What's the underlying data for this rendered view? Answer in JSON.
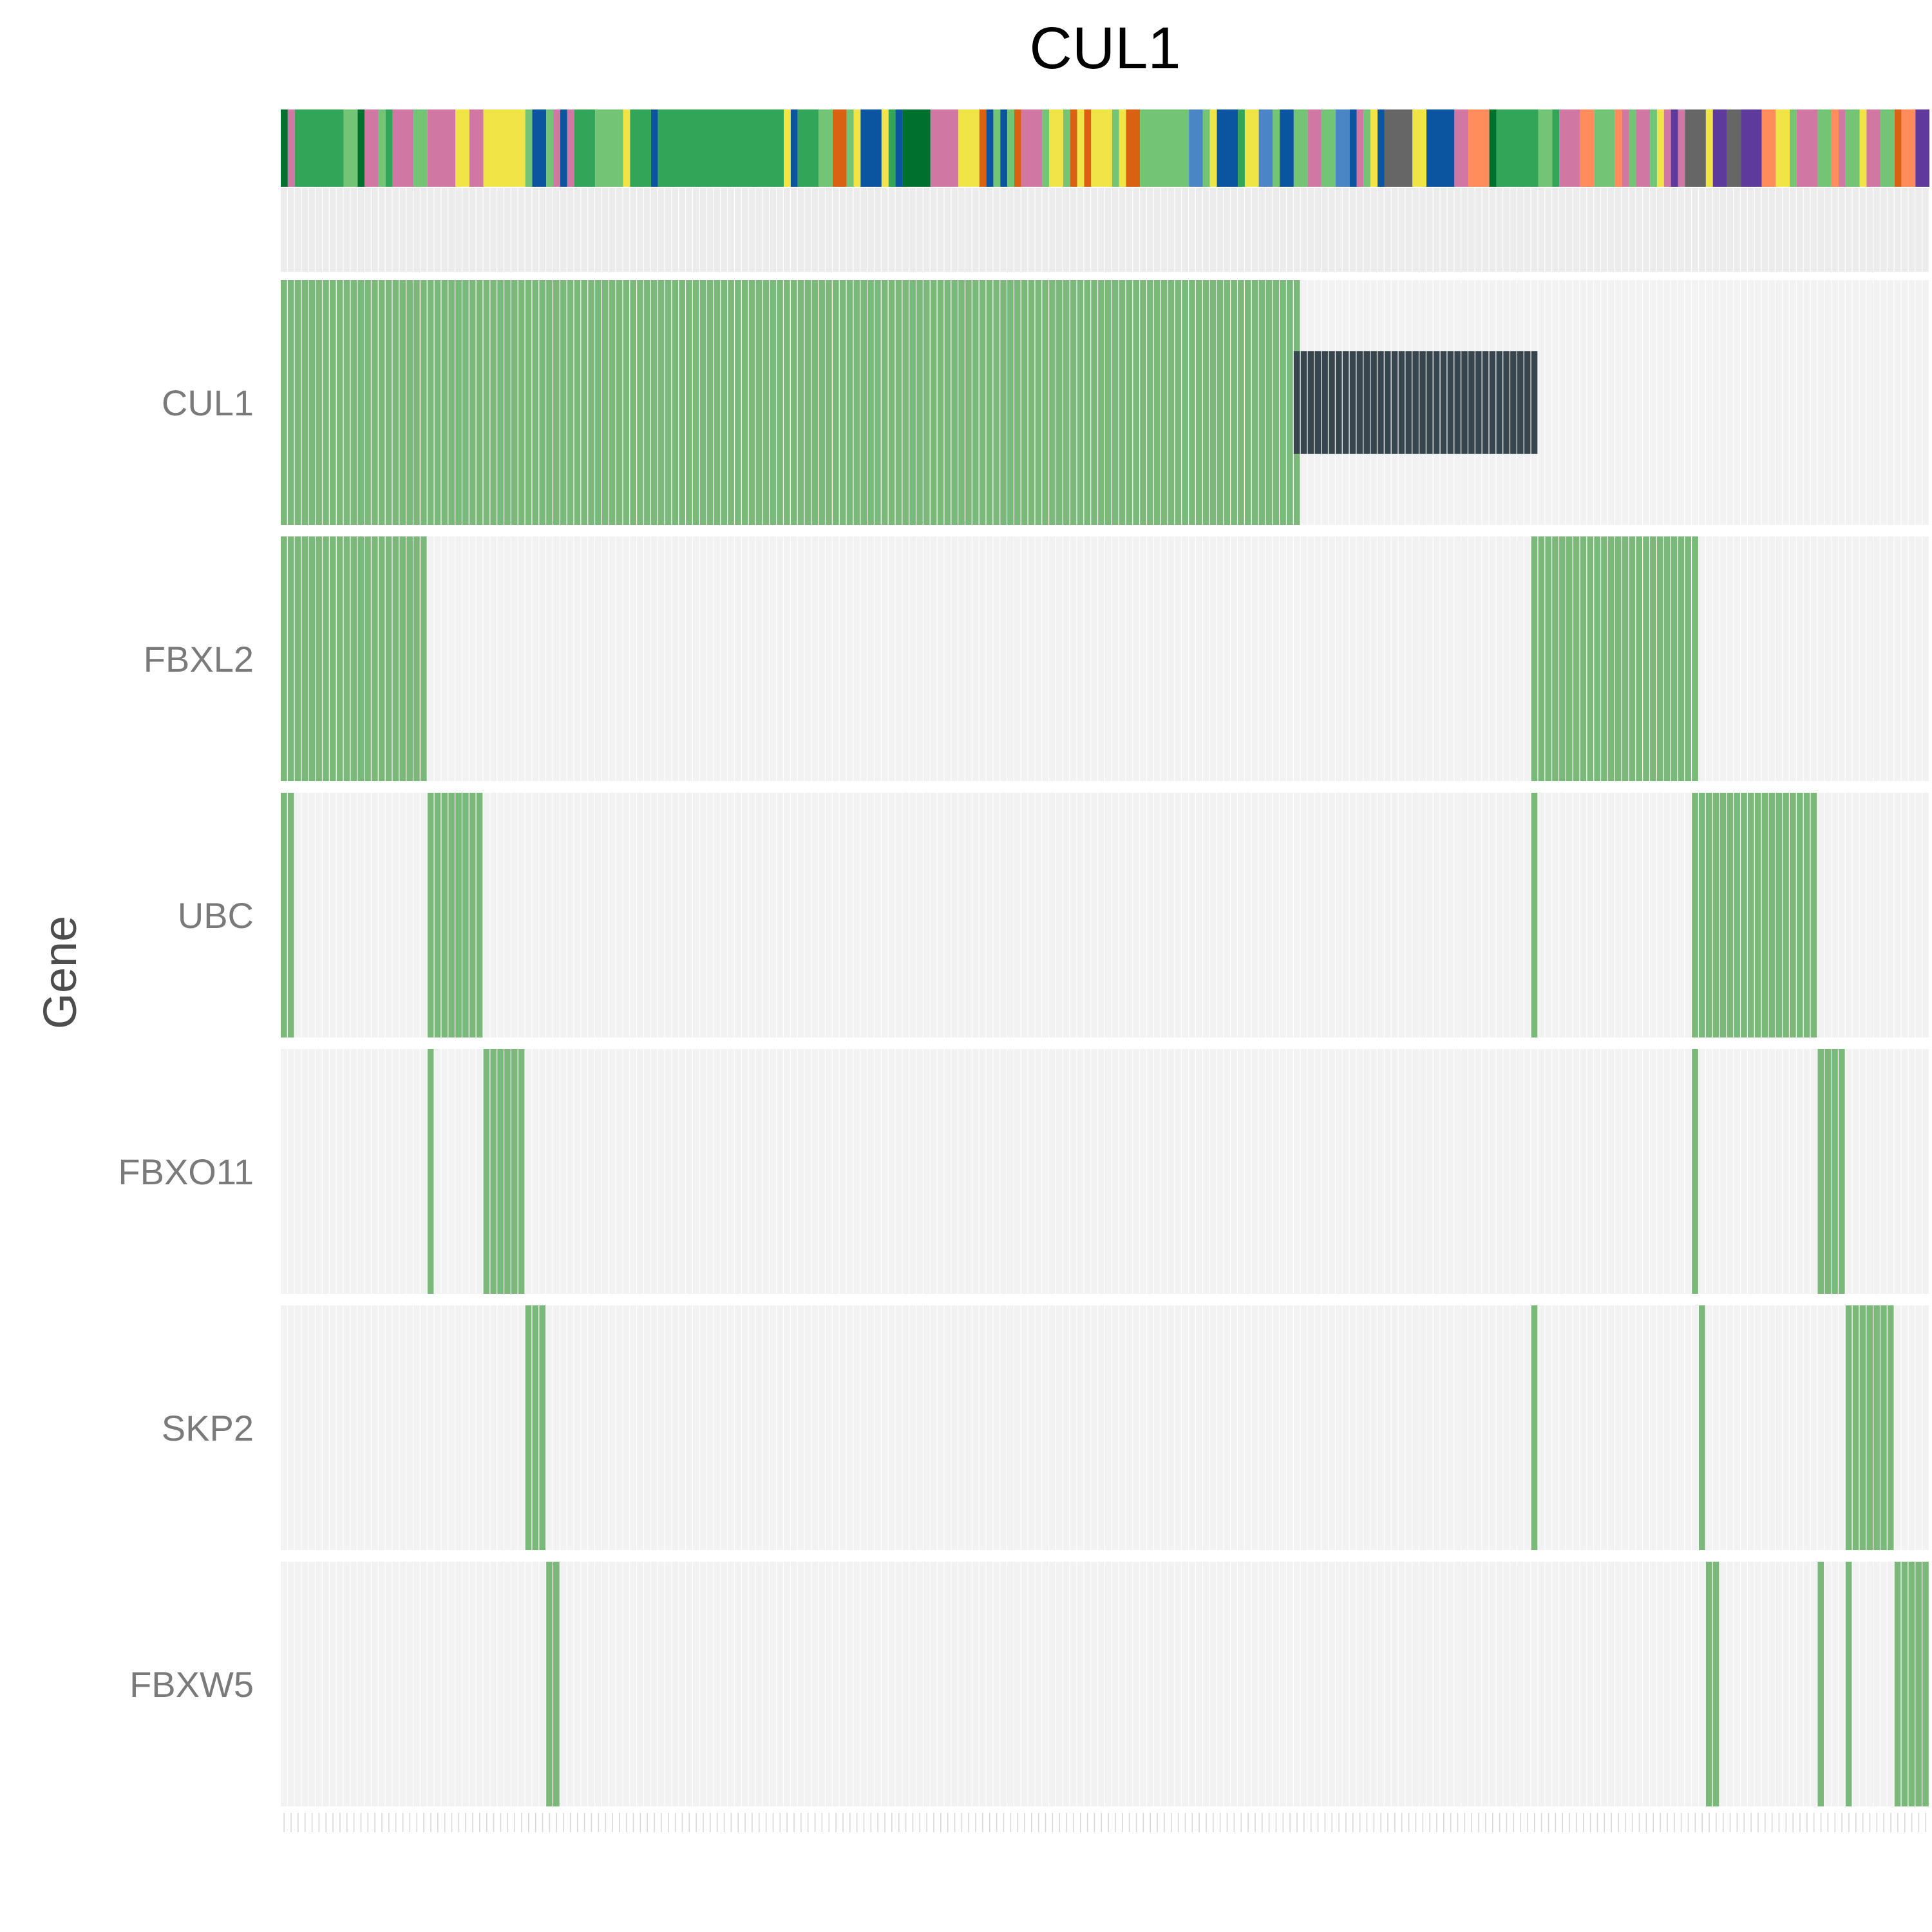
{
  "chart_data": {
    "type": "heatmap",
    "subtype": "oncoprint",
    "title": "CUL1",
    "xlabel": "",
    "ylabel": "Gene",
    "genes": [
      "CUL1",
      "FBXL2",
      "UBC",
      "FBXO11",
      "SKP2",
      "FBXW5"
    ],
    "sample_count": 236,
    "grid": true,
    "legend": "none",
    "alteration_colors": {
      "full": "#7bb97b",
      "mid_bar": "#37454f",
      "background": "#f2f2f2"
    },
    "alterations": {
      "CUL1": {
        "full": [
          [
            0,
            145
          ]
        ],
        "mid_bar": [
          [
            145,
            179
          ]
        ]
      },
      "FBXL2": {
        "full": [
          [
            0,
            20
          ],
          [
            179,
            202
          ]
        ]
      },
      "UBC": {
        "full": [
          [
            0,
            1
          ],
          [
            21,
            28
          ],
          [
            179,
            179
          ],
          [
            202,
            219
          ]
        ]
      },
      "FBXO11": {
        "full": [
          [
            21,
            21
          ],
          [
            29,
            34
          ],
          [
            202,
            202
          ],
          [
            220,
            223
          ]
        ]
      },
      "SKP2": {
        "full": [
          [
            35,
            37
          ],
          [
            179,
            179
          ],
          [
            203,
            203
          ],
          [
            224,
            230
          ]
        ]
      },
      "FBXW5": {
        "full": [
          [
            38,
            39
          ],
          [
            204,
            205
          ],
          [
            220,
            220
          ],
          [
            224,
            224
          ],
          [
            231,
            235
          ]
        ]
      }
    },
    "annotation_track": {
      "description": "sample category color strip",
      "segments": [
        {
          "start": 0,
          "end": 0,
          "color": "#00702f"
        },
        {
          "start": 1,
          "end": 1,
          "color": "#d077a3"
        },
        {
          "start": 2,
          "end": 8,
          "color": "#33a558"
        },
        {
          "start": 9,
          "end": 10,
          "color": "#74c476"
        },
        {
          "start": 11,
          "end": 11,
          "color": "#00702f"
        },
        {
          "start": 12,
          "end": 13,
          "color": "#d077a3"
        },
        {
          "start": 14,
          "end": 14,
          "color": "#74c476"
        },
        {
          "start": 15,
          "end": 15,
          "color": "#33a558"
        },
        {
          "start": 16,
          "end": 18,
          "color": "#d077a3"
        },
        {
          "start": 19,
          "end": 20,
          "color": "#74c476"
        },
        {
          "start": 21,
          "end": 24,
          "color": "#d077a3"
        },
        {
          "start": 25,
          "end": 26,
          "color": "#f1e447"
        },
        {
          "start": 27,
          "end": 28,
          "color": "#d077a3"
        },
        {
          "start": 29,
          "end": 34,
          "color": "#f1e447"
        },
        {
          "start": 35,
          "end": 35,
          "color": "#74c476"
        },
        {
          "start": 36,
          "end": 37,
          "color": "#0a54a0"
        },
        {
          "start": 38,
          "end": 38,
          "color": "#74c476"
        },
        {
          "start": 39,
          "end": 39,
          "color": "#d077a3"
        },
        {
          "start": 40,
          "end": 40,
          "color": "#0a54a0"
        },
        {
          "start": 41,
          "end": 41,
          "color": "#d077a3"
        },
        {
          "start": 42,
          "end": 44,
          "color": "#33a558"
        },
        {
          "start": 45,
          "end": 48,
          "color": "#74c476"
        },
        {
          "start": 49,
          "end": 49,
          "color": "#f1e447"
        },
        {
          "start": 50,
          "end": 52,
          "color": "#33a558"
        },
        {
          "start": 53,
          "end": 53,
          "color": "#0a54a0"
        },
        {
          "start": 54,
          "end": 71,
          "color": "#33a558"
        },
        {
          "start": 72,
          "end": 72,
          "color": "#f1e447"
        },
        {
          "start": 73,
          "end": 73,
          "color": "#0a54a0"
        },
        {
          "start": 74,
          "end": 76,
          "color": "#33a558"
        },
        {
          "start": 77,
          "end": 78,
          "color": "#74c476"
        },
        {
          "start": 79,
          "end": 80,
          "color": "#da6012"
        },
        {
          "start": 81,
          "end": 81,
          "color": "#74c476"
        },
        {
          "start": 82,
          "end": 82,
          "color": "#f1e447"
        },
        {
          "start": 83,
          "end": 85,
          "color": "#0a54a0"
        },
        {
          "start": 86,
          "end": 86,
          "color": "#f1e447"
        },
        {
          "start": 87,
          "end": 87,
          "color": "#33a558"
        },
        {
          "start": 88,
          "end": 88,
          "color": "#0a54a0"
        },
        {
          "start": 89,
          "end": 92,
          "color": "#00702f"
        },
        {
          "start": 93,
          "end": 96,
          "color": "#d077a3"
        },
        {
          "start": 97,
          "end": 99,
          "color": "#f1e447"
        },
        {
          "start": 100,
          "end": 100,
          "color": "#da6012"
        },
        {
          "start": 101,
          "end": 101,
          "color": "#0a54a0"
        },
        {
          "start": 102,
          "end": 102,
          "color": "#74c476"
        },
        {
          "start": 103,
          "end": 103,
          "color": "#0a54a0"
        },
        {
          "start": 104,
          "end": 104,
          "color": "#74c476"
        },
        {
          "start": 105,
          "end": 105,
          "color": "#da6012"
        },
        {
          "start": 106,
          "end": 108,
          "color": "#d077a3"
        },
        {
          "start": 109,
          "end": 109,
          "color": "#74c476"
        },
        {
          "start": 110,
          "end": 111,
          "color": "#f1e447"
        },
        {
          "start": 112,
          "end": 112,
          "color": "#74c476"
        },
        {
          "start": 113,
          "end": 113,
          "color": "#da6012"
        },
        {
          "start": 114,
          "end": 114,
          "color": "#f1e447"
        },
        {
          "start": 115,
          "end": 115,
          "color": "#da6012"
        },
        {
          "start": 116,
          "end": 118,
          "color": "#f1e447"
        },
        {
          "start": 119,
          "end": 119,
          "color": "#74c476"
        },
        {
          "start": 120,
          "end": 120,
          "color": "#f1e447"
        },
        {
          "start": 121,
          "end": 122,
          "color": "#da6012"
        },
        {
          "start": 123,
          "end": 129,
          "color": "#74c476"
        },
        {
          "start": 130,
          "end": 131,
          "color": "#4a86c6"
        },
        {
          "start": 132,
          "end": 132,
          "color": "#74c476"
        },
        {
          "start": 133,
          "end": 133,
          "color": "#f1e447"
        },
        {
          "start": 134,
          "end": 136,
          "color": "#0a54a0"
        },
        {
          "start": 137,
          "end": 137,
          "color": "#33a558"
        },
        {
          "start": 138,
          "end": 139,
          "color": "#f1e447"
        },
        {
          "start": 140,
          "end": 141,
          "color": "#4a86c6"
        },
        {
          "start": 142,
          "end": 142,
          "color": "#74c476"
        },
        {
          "start": 143,
          "end": 144,
          "color": "#0a54a0"
        },
        {
          "start": 145,
          "end": 146,
          "color": "#74c476"
        },
        {
          "start": 147,
          "end": 148,
          "color": "#d077a3"
        },
        {
          "start": 149,
          "end": 150,
          "color": "#74c476"
        },
        {
          "start": 151,
          "end": 152,
          "color": "#4a86c6"
        },
        {
          "start": 153,
          "end": 153,
          "color": "#0a54a0"
        },
        {
          "start": 154,
          "end": 154,
          "color": "#d077a3"
        },
        {
          "start": 155,
          "end": 155,
          "color": "#74c476"
        },
        {
          "start": 156,
          "end": 156,
          "color": "#f1e447"
        },
        {
          "start": 157,
          "end": 157,
          "color": "#0a54a0"
        },
        {
          "start": 158,
          "end": 161,
          "color": "#666666"
        },
        {
          "start": 162,
          "end": 163,
          "color": "#f1e447"
        },
        {
          "start": 164,
          "end": 167,
          "color": "#0a54a0"
        },
        {
          "start": 168,
          "end": 169,
          "color": "#d077a3"
        },
        {
          "start": 170,
          "end": 172,
          "color": "#ff8c5a"
        },
        {
          "start": 173,
          "end": 173,
          "color": "#00702f"
        },
        {
          "start": 174,
          "end": 179,
          "color": "#33a558"
        },
        {
          "start": 180,
          "end": 181,
          "color": "#74c476"
        },
        {
          "start": 182,
          "end": 182,
          "color": "#33a558"
        },
        {
          "start": 183,
          "end": 185,
          "color": "#d077a3"
        },
        {
          "start": 186,
          "end": 187,
          "color": "#ff8c5a"
        },
        {
          "start": 188,
          "end": 190,
          "color": "#74c476"
        },
        {
          "start": 191,
          "end": 191,
          "color": "#ff8c5a"
        },
        {
          "start": 192,
          "end": 192,
          "color": "#d077a3"
        },
        {
          "start": 193,
          "end": 193,
          "color": "#74c476"
        },
        {
          "start": 194,
          "end": 195,
          "color": "#d077a3"
        },
        {
          "start": 196,
          "end": 196,
          "color": "#74c476"
        },
        {
          "start": 197,
          "end": 197,
          "color": "#f1e447"
        },
        {
          "start": 198,
          "end": 198,
          "color": "#d077a3"
        },
        {
          "start": 199,
          "end": 199,
          "color": "#5d3a9b"
        },
        {
          "start": 200,
          "end": 200,
          "color": "#d077a3"
        },
        {
          "start": 201,
          "end": 203,
          "color": "#666666"
        },
        {
          "start": 204,
          "end": 204,
          "color": "#f1e447"
        },
        {
          "start": 205,
          "end": 206,
          "color": "#5d3a9b"
        },
        {
          "start": 207,
          "end": 208,
          "color": "#666666"
        },
        {
          "start": 209,
          "end": 211,
          "color": "#5d3a9b"
        },
        {
          "start": 212,
          "end": 213,
          "color": "#ff8c5a"
        },
        {
          "start": 214,
          "end": 215,
          "color": "#f1e447"
        },
        {
          "start": 216,
          "end": 216,
          "color": "#74c476"
        },
        {
          "start": 217,
          "end": 219,
          "color": "#d077a3"
        },
        {
          "start": 220,
          "end": 221,
          "color": "#74c476"
        },
        {
          "start": 222,
          "end": 222,
          "color": "#ff8c5a"
        },
        {
          "start": 223,
          "end": 223,
          "color": "#d077a3"
        },
        {
          "start": 224,
          "end": 225,
          "color": "#74c476"
        },
        {
          "start": 226,
          "end": 226,
          "color": "#f1e447"
        },
        {
          "start": 227,
          "end": 228,
          "color": "#d077a3"
        },
        {
          "start": 229,
          "end": 230,
          "color": "#74c476"
        },
        {
          "start": 231,
          "end": 231,
          "color": "#da6012"
        },
        {
          "start": 232,
          "end": 233,
          "color": "#ff8c5a"
        },
        {
          "start": 234,
          "end": 235,
          "color": "#5d3a9b"
        }
      ]
    }
  }
}
